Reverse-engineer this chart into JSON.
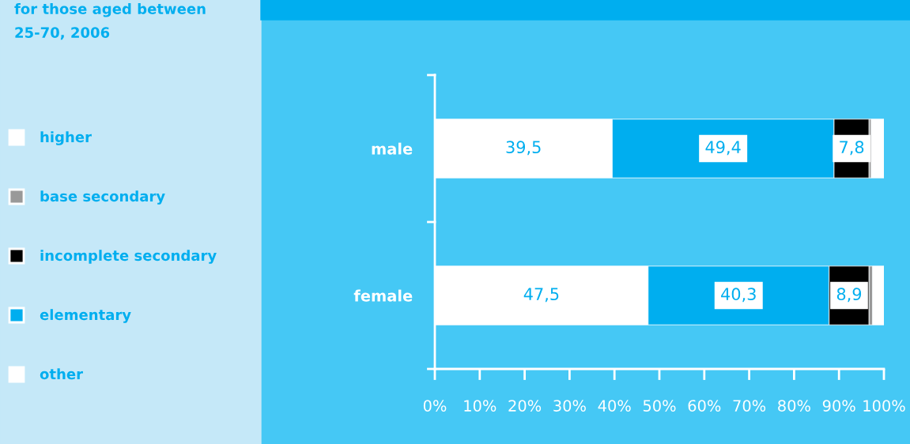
{
  "chart_data": {
    "type": "bar",
    "orientation": "horizontal",
    "stacked": true,
    "title": "for those aged between\n25-70, 2006",
    "categories": [
      "male",
      "female"
    ],
    "series": [
      {
        "name": "other",
        "color": "#ffffff",
        "values": [
          39.5,
          47.5
        ],
        "value_labels": [
          "39,5",
          "47,5"
        ]
      },
      {
        "name": "elementary",
        "color": "#00aeef",
        "values": [
          49.4,
          40.3
        ],
        "value_labels": [
          "49,4",
          "40,3"
        ]
      },
      {
        "name": "incomplete secondary",
        "color": "#000000",
        "values": [
          7.8,
          8.9
        ],
        "value_labels": [
          "7,8",
          "8,9"
        ]
      },
      {
        "name": "base secondary",
        "color": "#999999",
        "values": [
          0.5,
          0.8
        ]
      },
      {
        "name": "higher",
        "color": "#ffffff",
        "values": [
          2.8,
          2.5
        ]
      }
    ],
    "xlim": [
      0,
      100
    ],
    "xticks": [
      {
        "value": 0,
        "label": "0%"
      },
      {
        "value": 10,
        "label": "10%"
      },
      {
        "value": 20,
        "label": "20%"
      },
      {
        "value": 30,
        "label": "30%"
      },
      {
        "value": 40,
        "label": "40%"
      },
      {
        "value": 50,
        "label": "50%"
      },
      {
        "value": 60,
        "label": "60%"
      },
      {
        "value": 70,
        "label": "70%"
      },
      {
        "value": 80,
        "label": "80%"
      },
      {
        "value": 90,
        "label": "90%"
      },
      {
        "value": 100,
        "label": "100%"
      }
    ],
    "legend": "left",
    "grid": false
  }
}
